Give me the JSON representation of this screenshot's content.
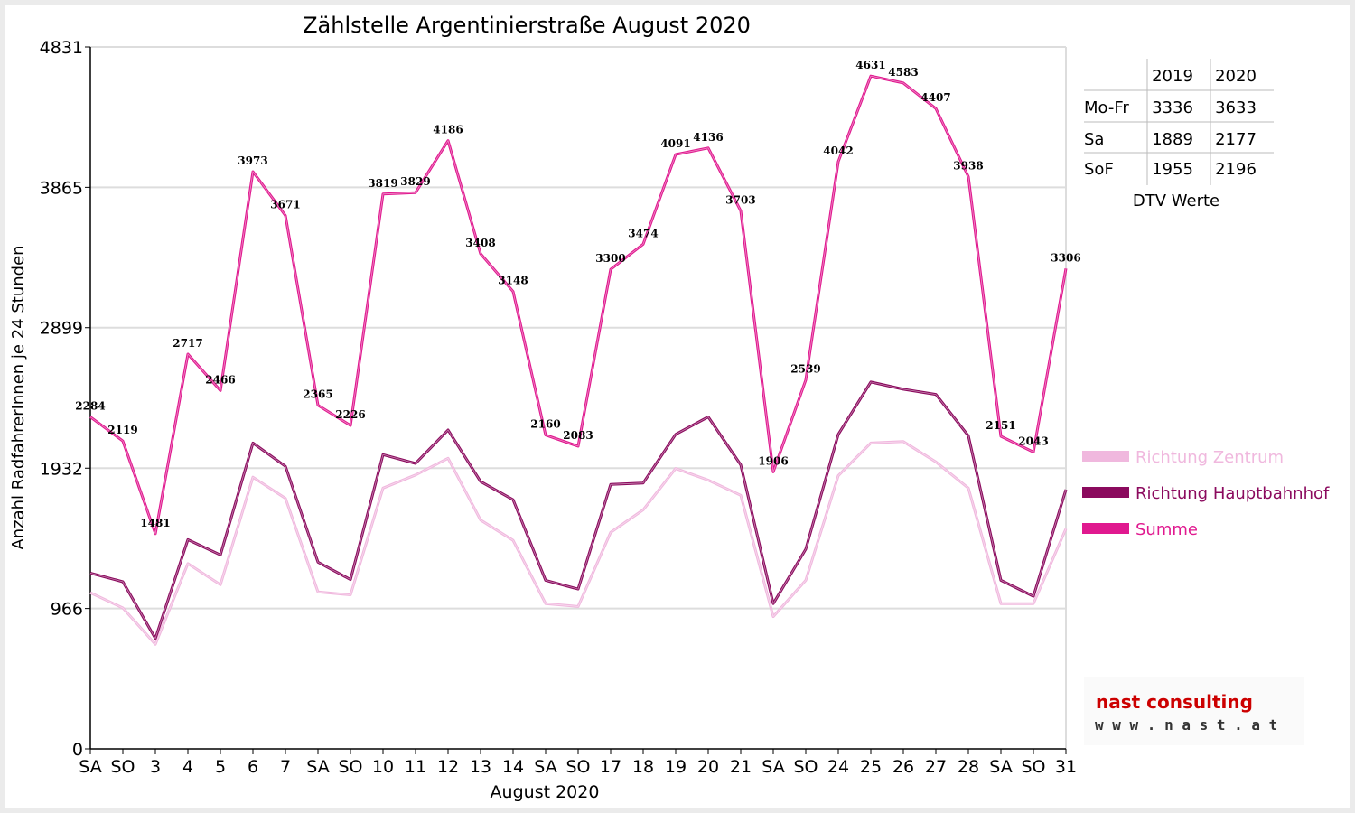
{
  "chart_data": {
    "type": "line",
    "title": "Zählstelle Argentinierstraße August 2020",
    "xlabel": "August 2020",
    "ylabel": "Anzahl RadfahrerInnen je 24 Stunden",
    "ylim": [
      0,
      4831
    ],
    "yticks": [
      0,
      966,
      1932,
      2899,
      3865,
      4831
    ],
    "categories": [
      "SA",
      "SO",
      "3",
      "4",
      "5",
      "6",
      "7",
      "SA",
      "SO",
      "10",
      "11",
      "12",
      "13",
      "14",
      "SA",
      "SO",
      "17",
      "18",
      "19",
      "20",
      "21",
      "SA",
      "SO",
      "24",
      "25",
      "26",
      "27",
      "28",
      "SA",
      "SO",
      "31"
    ],
    "category_colors": [
      "#000000",
      "#e00000",
      "#000000",
      "#000000",
      "#000000",
      "#000000",
      "#000000",
      "#000000",
      "#e00000",
      "#000000",
      "#000000",
      "#000000",
      "#000000",
      "#000000",
      "#000000",
      "#e00000",
      "#000000",
      "#000000",
      "#000000",
      "#000000",
      "#000000",
      "#000000",
      "#e00000",
      "#000000",
      "#000000",
      "#000000",
      "#000000",
      "#000000",
      "#000000",
      "#e00000",
      "#000000"
    ],
    "grid": true,
    "legend_position": "right",
    "series": [
      {
        "name": "Richtung Zentrum",
        "color": "#f0b8de",
        "values": [
          1075,
          970,
          720,
          1275,
          1130,
          1870,
          1725,
          1080,
          1060,
          1795,
          1885,
          2000,
          1575,
          1435,
          1000,
          980,
          1490,
          1645,
          1930,
          1850,
          1745,
          910,
          1160,
          1880,
          2105,
          2115,
          1975,
          1795,
          1000,
          1000,
          1515
        ]
      },
      {
        "name": "Richtung Hauptbahnhof",
        "color": "#8b0a5e",
        "values": [
          1210,
          1150,
          760,
          1440,
          1335,
          2105,
          1945,
          1285,
          1165,
          2025,
          1965,
          2195,
          1840,
          1715,
          1160,
          1100,
          1820,
          1830,
          2165,
          2285,
          1955,
          1000,
          1375,
          2165,
          2525,
          2475,
          2440,
          2155,
          1160,
          1050,
          1785
        ]
      },
      {
        "name": "Summe",
        "color": "#e0198f",
        "values": [
          2284,
          2119,
          1481,
          2717,
          2466,
          3973,
          3671,
          2365,
          2226,
          3819,
          3829,
          4186,
          3408,
          3148,
          2160,
          2083,
          3300,
          3474,
          4091,
          4136,
          3703,
          1906,
          2539,
          4042,
          4631,
          4583,
          4407,
          3938,
          2151,
          2043,
          3306
        ],
        "labels": [
          "2284",
          "2119",
          "1481",
          "2717",
          "2466",
          "3973",
          "3671",
          "2365",
          "2226",
          "3819",
          "3829",
          "4186",
          "3408",
          "3148",
          "2160",
          "2083",
          "3300",
          "3474",
          "4091",
          "4136",
          "3703",
          "1906",
          "2539",
          "4042",
          "4631",
          "4583",
          "4407",
          "3938",
          "2151",
          "2043",
          "3306"
        ]
      }
    ]
  },
  "dtv_table": {
    "headers": [
      "",
      "2019",
      "2020"
    ],
    "rows": [
      {
        "label": "Mo-Fr",
        "v2019": "3336",
        "v2020": "3633"
      },
      {
        "label": "Sa",
        "v2019": "1889",
        "v2020": "2177"
      },
      {
        "label": "SoF",
        "v2019": "1955",
        "v2020": "2196"
      }
    ],
    "caption": "DTV Werte"
  },
  "logo": {
    "name": "nast consulting",
    "url": "w w w . n a s t . a t"
  }
}
